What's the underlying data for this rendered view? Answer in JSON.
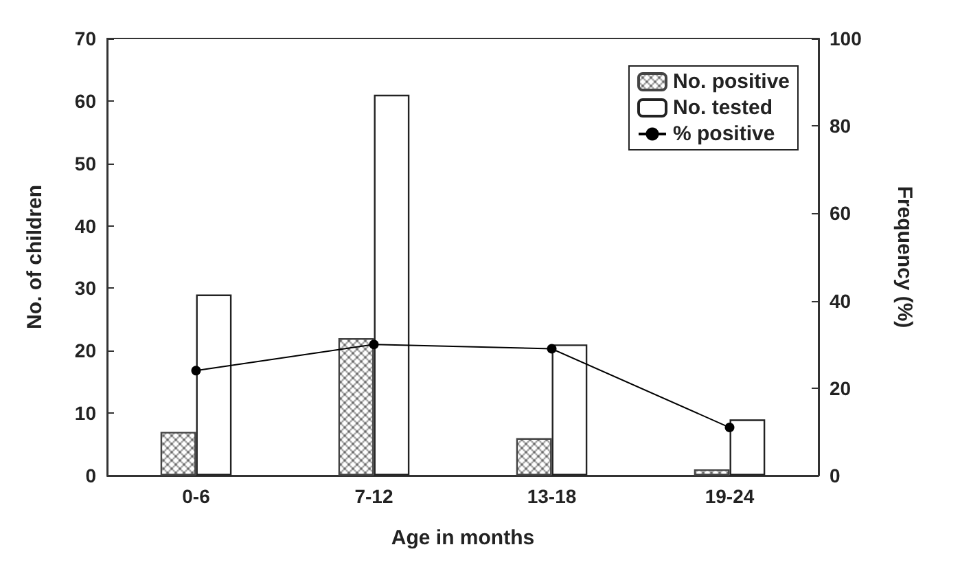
{
  "chart_data": {
    "type": "bar",
    "xlabel": "Age in months",
    "ylabel": "No. of children",
    "y2label": "Frequency (%)",
    "categories": [
      "0-6",
      "7-12",
      "13-18",
      "19-24"
    ],
    "series": [
      {
        "name": "No. positive",
        "color": "#444444",
        "values": [
          7,
          22,
          6,
          1
        ]
      },
      {
        "name": "No. tested",
        "color": "#ffffff",
        "values": [
          29,
          61,
          21,
          9
        ]
      },
      {
        "name": "% positive",
        "type": "line",
        "axis": "y2",
        "color": "#000000",
        "values": [
          24,
          30,
          29,
          11
        ]
      }
    ],
    "ylim": [
      0,
      70
    ],
    "yticks": [
      0,
      10,
      20,
      30,
      40,
      50,
      60,
      70
    ],
    "y2lim": [
      0,
      100
    ],
    "y2ticks": [
      0,
      20,
      40,
      60,
      80,
      100
    ],
    "legend": "top right",
    "marker": "circle",
    "grid": false
  }
}
